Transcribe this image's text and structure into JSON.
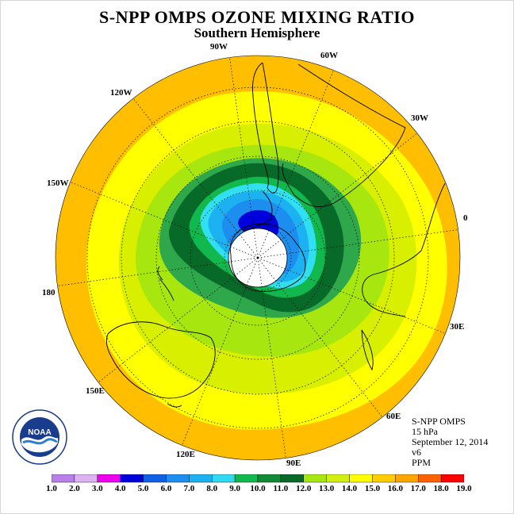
{
  "title": "S-NPP OMPS OZONE MIXING RATIO",
  "subtitle": "Southern Hemisphere",
  "longitude_labels": {
    "w90": "90W",
    "w60": "60W",
    "w30": "30W",
    "w120": "120W",
    "w150": "150W",
    "zero": "0",
    "e180": "180",
    "e30": "30E",
    "e150": "150E",
    "e60": "60E",
    "e120": "120E",
    "e90": "90E"
  },
  "info": {
    "instrument": "S-NPP OMPS",
    "level": "15 hPa",
    "date": "September 12, 2014",
    "version": "v6",
    "units": "PPM"
  },
  "logo": {
    "text": "NOAA",
    "ring_text": "NATIONAL OCEANIC AND ATMOSPHERIC ADMINISTRATION · U.S. DEPARTMENT OF COMMERCE"
  },
  "colorbar": {
    "labels": [
      "1.0",
      "2.0",
      "3.0",
      "4.0",
      "5.0",
      "6.0",
      "7.0",
      "8.0",
      "9.0",
      "10.0",
      "11.0",
      "12.0",
      "13.0",
      "14.0",
      "15.0",
      "16.0",
      "17.0",
      "18.0",
      "19.0"
    ],
    "colors": [
      "#b87fe8",
      "#dcb1f2",
      "#ee00ee",
      "#0000dd",
      "#1060e6",
      "#1c8ef0",
      "#1cb2f2",
      "#30d8f0",
      "#10b84e",
      "#108a34",
      "#086a28",
      "#a8e610",
      "#d2f010",
      "#ffff00",
      "#ffcc00",
      "#ffa500",
      "#ff6200",
      "#ff0000",
      "#8b5a3c"
    ]
  },
  "map": {
    "projection": "south-polar-stereographic",
    "colors": {
      "ocean_edge": "#ffbf00",
      "orange_band": "#ffcc00",
      "yellow": "#ffff00",
      "yellow_green": "#d8f000",
      "light_green": "#a8e610",
      "mid_green": "#2ea84a",
      "dark_green": "#086a28",
      "cyan": "#30e0f0",
      "light_blue": "#1cb2f2",
      "blue": "#1c8ef0",
      "deep_blue": "#0000dd",
      "polar_night": "#ffffff"
    }
  }
}
